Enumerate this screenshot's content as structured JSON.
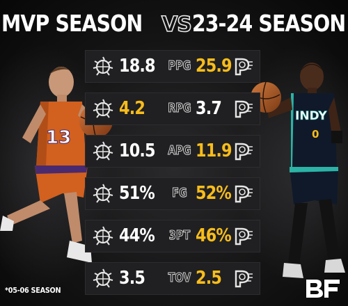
{
  "header": {
    "left_title": "MVP SEASON",
    "vs": "VS",
    "right_title": "23-24 SEASON"
  },
  "stats": [
    {
      "label": "PPG",
      "left": "18.8",
      "right": "25.9",
      "left_color": "white",
      "right_color": "gold"
    },
    {
      "label": "RPG",
      "left": "4.2",
      "right": "3.7",
      "left_color": "gold",
      "right_color": "white"
    },
    {
      "label": "APG",
      "left": "10.5",
      "right": "11.9",
      "left_color": "white",
      "right_color": "gold"
    },
    {
      "label": "FG",
      "left": "51%",
      "right": "52%",
      "left_color": "white",
      "right_color": "gold"
    },
    {
      "label": "3PT",
      "left": "44%",
      "right": "46%",
      "left_color": "white",
      "right_color": "gold"
    },
    {
      "label": "TOV",
      "left": "3.5",
      "right": "2.5",
      "left_color": "white",
      "right_color": "gold"
    }
  ],
  "players": {
    "left_jersey_number": "13",
    "right_jersey_team": "INDY",
    "right_jersey_number": "0"
  },
  "footnote": "*05-06 SEASON",
  "brand": "BF",
  "colors": {
    "highlight": "#f8bd1b",
    "row_bg": "#202022",
    "suns_orange": "#e0641f",
    "suns_purple": "#4a2a6e",
    "pacers_navy": "#0e1a2e",
    "pacers_teal": "#2bb3a6"
  },
  "icons": {
    "left_team": "suns-logo-icon",
    "right_team": "pacers-logo-icon",
    "brand": "bf-logo-icon"
  }
}
